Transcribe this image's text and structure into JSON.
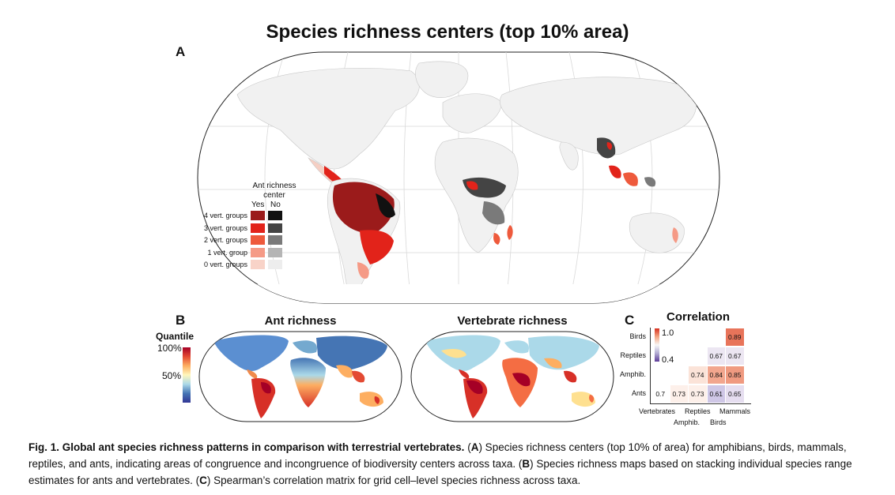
{
  "title": "Species richness centers (top 10% area)",
  "panel_labels": {
    "a": "A",
    "b": "B",
    "c": "C"
  },
  "legend": {
    "title_line1": "Ant richness",
    "title_line2": "center",
    "col_yes": "Yes",
    "col_no": "No",
    "rows": [
      {
        "label": "4 vert. groups",
        "yes_color": "#9b1b1b",
        "no_color": "#111111"
      },
      {
        "label": "3 vert. groups",
        "yes_color": "#e2231a",
        "no_color": "#444444"
      },
      {
        "label": "2 vert. groups",
        "yes_color": "#ee5a3c",
        "no_color": "#7a7a7a"
      },
      {
        "label": "1 vert. group",
        "yes_color": "#f59a86",
        "no_color": "#b5b5b5"
      },
      {
        "label": "0 vert. groups",
        "yes_color": "#f8d3c8",
        "no_color": "#ededed"
      }
    ]
  },
  "panel_b": {
    "quantile_title": "Quantile",
    "tick_top": "100%",
    "tick_mid": "50%",
    "ant_title": "Ant richness",
    "vert_title": "Vertebrate richness"
  },
  "correlation": {
    "title": "Correlation",
    "scale_high": "1.0",
    "scale_low": "0.4",
    "rows": [
      "Birds",
      "Reptiles",
      "Amphib.",
      "Ants"
    ],
    "cols_top": [
      "Vertebrates",
      "Reptiles",
      "Mammals"
    ],
    "cols_bottom": [
      "Amphib.",
      "Birds"
    ],
    "cells": [
      {
        "row": 0,
        "col": 4,
        "text": "0.89",
        "color": "#e8745a"
      },
      {
        "row": 1,
        "col": 3,
        "text": "0.67",
        "color": "#ece6f2"
      },
      {
        "row": 1,
        "col": 4,
        "text": "0.67",
        "color": "#ece6f2"
      },
      {
        "row": 2,
        "col": 2,
        "text": "0.74",
        "color": "#fbe3d8"
      },
      {
        "row": 2,
        "col": 3,
        "text": "0.84",
        "color": "#f2a68e"
      },
      {
        "row": 2,
        "col": 4,
        "text": "0.85",
        "color": "#f09a80"
      },
      {
        "row": 3,
        "col": 0,
        "text": "0.7",
        "color": "#ffffff"
      },
      {
        "row": 3,
        "col": 1,
        "text": "0.73",
        "color": "#fdf0ea"
      },
      {
        "row": 3,
        "col": 2,
        "text": "0.73",
        "color": "#fdf0ea"
      },
      {
        "row": 3,
        "col": 3,
        "text": "0.61",
        "color": "#cfc7e6"
      },
      {
        "row": 3,
        "col": 4,
        "text": "0.65",
        "color": "#e6def0"
      }
    ]
  },
  "caption": {
    "bold": "Fig. 1. Global ant species richness patterns in comparison with terrestrial vertebrates.",
    "p1": " (",
    "a": "A",
    "p2": ") Species richness centers (top 10% of area) for amphibians, birds, mammals, reptiles, and ants, indicating areas of congruence and incongruence of biodiversity centers across taxa. (",
    "b": "B",
    "p3": ") Species richness maps based on stacking individual species range estimates for ants and vertebrates. (",
    "c": "C",
    "p4": ") Spearman’s correlation matrix for grid cell–level species richness across taxa."
  }
}
